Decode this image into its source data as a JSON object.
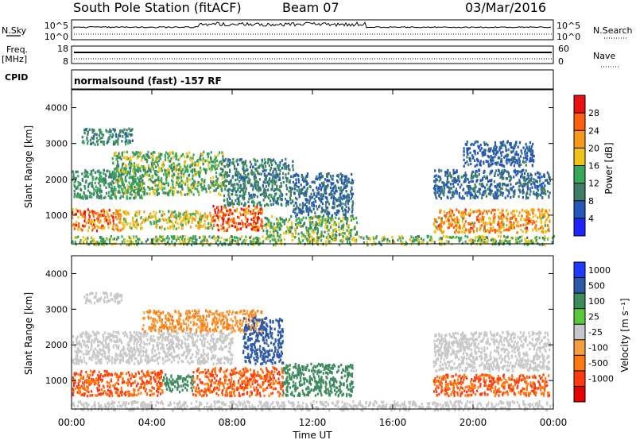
{
  "header": {
    "station": "South Pole Station (fitACF)",
    "beam": "Beam 07",
    "date": "03/Mar/2016"
  },
  "noise_panel": {
    "left_label": "N.Sky",
    "left_ticks": [
      "10^5",
      "10^0"
    ],
    "right_label": "N.Search",
    "right_ticks": [
      "10^5",
      "10^0"
    ]
  },
  "freq_panel": {
    "left_label_line1": "Freq.",
    "left_label_line2": "[MHz]",
    "left_ticks": [
      "18",
      "8"
    ],
    "right_label": "Nave",
    "right_ticks": [
      "60",
      "0"
    ],
    "cpid_label": "CPID",
    "cpid_text": "normalsound (fast) -157 RF"
  },
  "chart_data": [
    {
      "type": "heatmap",
      "name": "power",
      "ylabel": "Slant Range [km]",
      "xlabel": "",
      "y_ticks": [
        "1000",
        "2000",
        "3000",
        "4000"
      ],
      "ylim": [
        200,
        4500
      ],
      "xlim": [
        0,
        24
      ],
      "colorbar": {
        "label": "Power [dB]",
        "ticks": [
          "4",
          "8",
          "12",
          "16",
          "20",
          "24",
          "28"
        ],
        "colors": [
          "#1e24ff",
          "#2357b8",
          "#3e7e66",
          "#39a85a",
          "#f0c31a",
          "#f59a1c",
          "#ff6010",
          "#e81010"
        ]
      },
      "bands": [
        {
          "t0": 0.0,
          "t1": 2.5,
          "r0": 600,
          "r1": 1200,
          "v": 24
        },
        {
          "t0": 2.5,
          "t1": 7.0,
          "r0": 650,
          "r1": 1150,
          "v": 18
        },
        {
          "t0": 7.0,
          "t1": 9.5,
          "r0": 600,
          "r1": 1300,
          "v": 26
        },
        {
          "t0": 9.5,
          "t1": 14.2,
          "r0": 450,
          "r1": 1000,
          "v": 14
        },
        {
          "t0": 0.0,
          "t1": 3.5,
          "r0": 1500,
          "r1": 2300,
          "v": 12
        },
        {
          "t0": 2.0,
          "t1": 7.5,
          "r0": 1600,
          "r1": 2800,
          "v": 14
        },
        {
          "t0": 7.5,
          "t1": 11.0,
          "r0": 1300,
          "r1": 2600,
          "v": 10
        },
        {
          "t0": 11.0,
          "t1": 14.0,
          "r0": 1000,
          "r1": 2200,
          "v": 8
        },
        {
          "t0": 0.5,
          "t1": 3.0,
          "r0": 3000,
          "r1": 3450,
          "v": 10
        },
        {
          "t0": 18.0,
          "t1": 23.8,
          "r0": 550,
          "r1": 1200,
          "v": 22
        },
        {
          "t0": 18.0,
          "t1": 23.8,
          "r0": 1500,
          "r1": 2300,
          "v": 8
        },
        {
          "t0": 19.5,
          "t1": 23.0,
          "r0": 2400,
          "r1": 3100,
          "v": 7
        },
        {
          "t0": 0.0,
          "t1": 24.0,
          "r0": 200,
          "r1": 450,
          "v": 15
        }
      ]
    },
    {
      "type": "heatmap",
      "name": "velocity",
      "ylabel": "Slant Range [km]",
      "xlabel": "Time UT",
      "x_ticks": [
        "00:00",
        "04:00",
        "08:00",
        "12:00",
        "16:00",
        "20:00",
        "00:00"
      ],
      "y_ticks": [
        "1000",
        "2000",
        "3000",
        "4000"
      ],
      "ylim": [
        200,
        4500
      ],
      "xlim": [
        0,
        24
      ],
      "colorbar": {
        "label": "Velocity [m s⁻¹]",
        "ticks": [
          "1000",
          "500",
          "100",
          "25",
          "-25",
          "-100",
          "-500",
          "-1000"
        ],
        "colors": [
          "#1e3cff",
          "#2d5aa8",
          "#3d8a5c",
          "#5ac83c",
          "#c8c8c8",
          "#f5a040",
          "#ff7a10",
          "#ff3a10",
          "#e60000"
        ]
      },
      "bands": [
        {
          "t0": 0.0,
          "t1": 4.5,
          "r0": 600,
          "r1": 1300,
          "v": -500
        },
        {
          "t0": 6.0,
          "t1": 10.5,
          "r0": 600,
          "r1": 1400,
          "v": -500
        },
        {
          "t0": 4.5,
          "t1": 6.0,
          "r0": 700,
          "r1": 1200,
          "v": 100
        },
        {
          "t0": 10.5,
          "t1": 14.0,
          "r0": 600,
          "r1": 1500,
          "v": 100
        },
        {
          "t0": 0.0,
          "t1": 8.0,
          "r0": 1500,
          "r1": 2400,
          "v": 0
        },
        {
          "t0": 3.5,
          "t1": 9.5,
          "r0": 2400,
          "r1": 3000,
          "v": -100
        },
        {
          "t0": 8.5,
          "t1": 10.5,
          "r0": 1500,
          "r1": 2800,
          "v": 500
        },
        {
          "t0": 0.5,
          "t1": 2.5,
          "r0": 3200,
          "r1": 3500,
          "v": 0
        },
        {
          "t0": 18.0,
          "t1": 23.8,
          "r0": 600,
          "r1": 1200,
          "v": -500
        },
        {
          "t0": 18.0,
          "t1": 23.8,
          "r0": 1300,
          "r1": 2400,
          "v": 0
        },
        {
          "t0": 0.0,
          "t1": 24.0,
          "r0": 200,
          "r1": 450,
          "v": 0
        }
      ]
    }
  ]
}
